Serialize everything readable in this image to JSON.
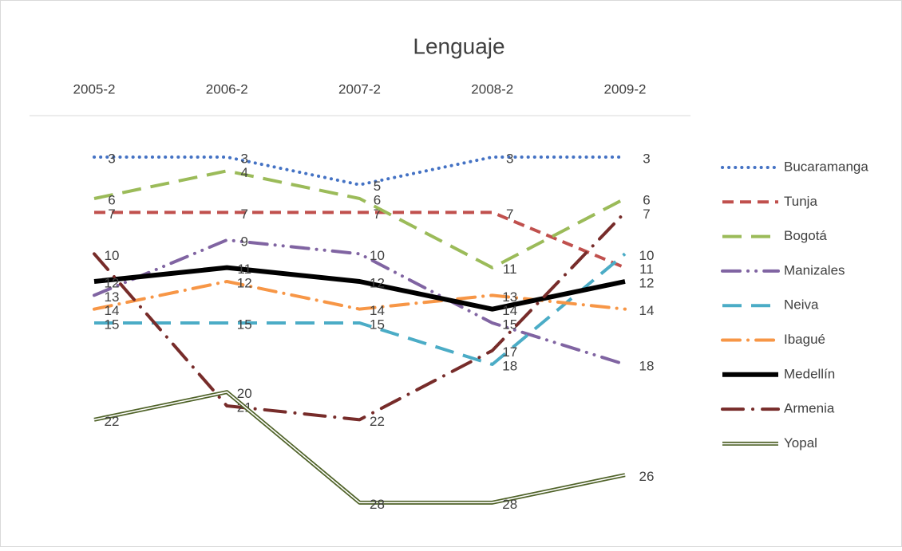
{
  "chart_data": {
    "type": "line",
    "title": "Lenguaje",
    "categories": [
      "2005-2",
      "2006-2",
      "2007-2",
      "2008-2",
      "2009-2"
    ],
    "ylim": [
      0,
      30
    ],
    "y_reversed": true,
    "legend": "right",
    "series": [
      {
        "name": "Bucaramanga",
        "color": "#4472c4",
        "line_style": "dotted",
        "values": [
          3,
          3,
          5,
          3,
          3
        ]
      },
      {
        "name": "Tunja",
        "color": "#c0504d",
        "line_style": "dashed",
        "values": [
          7,
          7,
          7,
          7,
          11
        ]
      },
      {
        "name": "Bogotá",
        "color": "#9bbb59",
        "line_style": "long-dash",
        "values": [
          6,
          4,
          6,
          11,
          6
        ]
      },
      {
        "name": "Manizales",
        "color": "#8064a2",
        "line_style": "dash-dot-dot",
        "values": [
          13,
          9,
          10,
          15,
          18
        ]
      },
      {
        "name": "Neiva",
        "color": "#4bacc6",
        "line_style": "long-dash",
        "values": [
          15,
          15,
          15,
          18,
          10
        ]
      },
      {
        "name": "Ibagué",
        "color": "#f79646",
        "line_style": "dash-dot",
        "values": [
          14,
          12,
          14,
          13,
          14
        ]
      },
      {
        "name": "Medellín",
        "color": "#000000",
        "line_style": "thick",
        "values": [
          12,
          11,
          12,
          14,
          12
        ]
      },
      {
        "name": "Armenia",
        "color": "#772c2a",
        "line_style": "long-dash-dot",
        "values": [
          10,
          21,
          22,
          17,
          7
        ]
      },
      {
        "name": "Yopal",
        "color": "#4f6228",
        "line_style": "double",
        "values": [
          22,
          20,
          28,
          28,
          26
        ]
      }
    ]
  }
}
